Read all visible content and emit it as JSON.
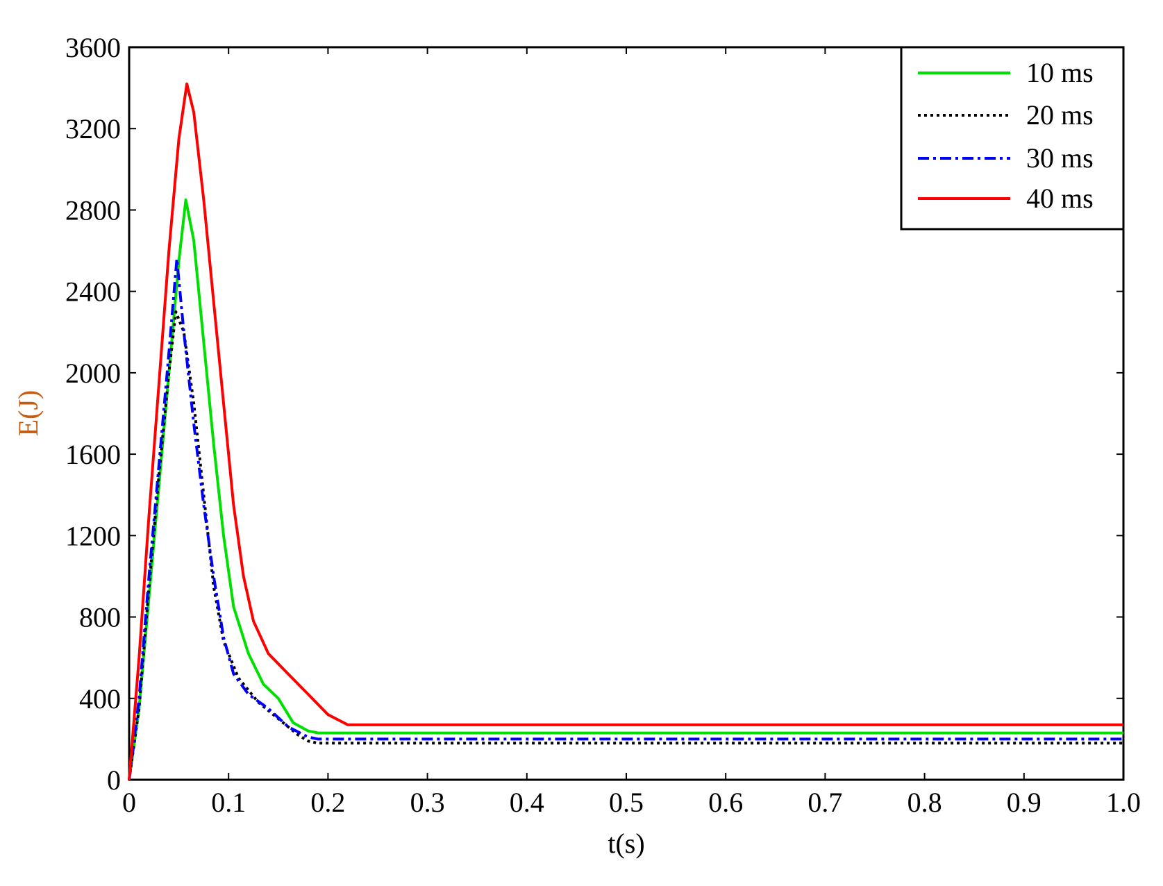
{
  "chart_data": {
    "type": "line",
    "title": "",
    "xlabel": "t(s)",
    "ylabel": "E(J)",
    "xlabel_color": "#000000",
    "ylabel_color": "#c55a11",
    "xlim": [
      0,
      1.0
    ],
    "ylim": [
      0,
      3600
    ],
    "x_ticks": [
      0,
      0.1,
      0.2,
      0.3,
      0.4,
      0.5,
      0.6,
      0.7,
      0.8,
      0.9,
      1.0
    ],
    "x_tick_labels": [
      "0",
      "0.1",
      "0.2",
      "0.3",
      "0.4",
      "0.5",
      "0.6",
      "0.7",
      "0.8",
      "0.9",
      "1.0"
    ],
    "y_ticks": [
      0,
      400,
      800,
      1200,
      1600,
      2000,
      2400,
      2800,
      3200,
      3600
    ],
    "y_tick_labels": [
      "0",
      "400",
      "800",
      "1200",
      "1600",
      "2000",
      "2400",
      "2800",
      "3200",
      "3600"
    ],
    "grid": false,
    "legend_position": "top-right",
    "series": [
      {
        "name": "10 ms",
        "color": "#00e000",
        "style": "solid",
        "x": [
          0,
          0.01,
          0.02,
          0.03,
          0.04,
          0.05,
          0.057,
          0.065,
          0.075,
          0.085,
          0.095,
          0.105,
          0.12,
          0.135,
          0.15,
          0.165,
          0.18,
          0.19,
          0.2,
          1.0
        ],
        "y": [
          0,
          350,
          900,
          1450,
          2000,
          2550,
          2850,
          2650,
          2150,
          1650,
          1200,
          850,
          620,
          470,
          400,
          280,
          240,
          230,
          230,
          230
        ]
      },
      {
        "name": "20 ms",
        "color": "#000000",
        "style": "dotted",
        "x": [
          0,
          0.01,
          0.02,
          0.03,
          0.04,
          0.047,
          0.055,
          0.065,
          0.075,
          0.085,
          0.095,
          0.11,
          0.13,
          0.15,
          0.17,
          0.18,
          0.19,
          0.2,
          1.0
        ],
        "y": [
          0,
          350,
          950,
          1500,
          2000,
          2300,
          2200,
          1850,
          1400,
          950,
          680,
          500,
          380,
          300,
          220,
          190,
          180,
          180,
          180
        ]
      },
      {
        "name": "30 ms",
        "color": "#0000ff",
        "style": "dashdot",
        "x": [
          0,
          0.01,
          0.02,
          0.03,
          0.04,
          0.048,
          0.055,
          0.065,
          0.075,
          0.085,
          0.095,
          0.105,
          0.12,
          0.14,
          0.16,
          0.18,
          0.19,
          1.0
        ],
        "y": [
          0,
          400,
          1000,
          1550,
          2100,
          2560,
          2200,
          1750,
          1350,
          1000,
          700,
          520,
          420,
          350,
          260,
          210,
          200,
          200
        ]
      },
      {
        "name": "40 ms",
        "color": "#ff0000",
        "style": "solid",
        "x": [
          0,
          0.01,
          0.02,
          0.03,
          0.04,
          0.05,
          0.058,
          0.065,
          0.075,
          0.085,
          0.095,
          0.105,
          0.115,
          0.125,
          0.14,
          0.16,
          0.18,
          0.2,
          0.22,
          1.0
        ],
        "y": [
          0,
          600,
          1300,
          1950,
          2600,
          3150,
          3420,
          3280,
          2850,
          2350,
          1850,
          1350,
          1000,
          780,
          620,
          520,
          420,
          320,
          270,
          270
        ]
      }
    ]
  }
}
